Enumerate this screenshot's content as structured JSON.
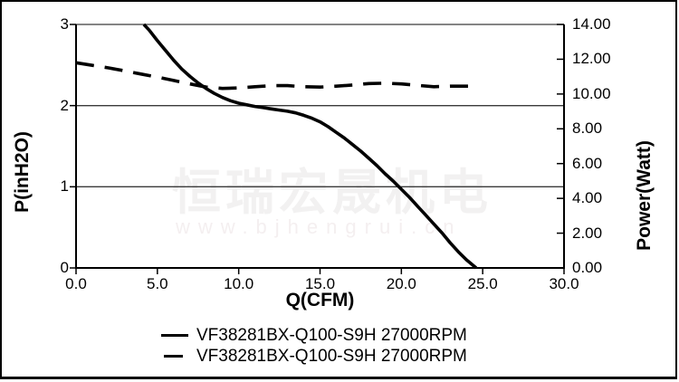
{
  "watermark": {
    "cjk_text": "恒瑞宏晟机电",
    "url_text": "www.bjhengrui.cn"
  },
  "colors": {
    "curve": "#000000",
    "grid": "#3a3a3a",
    "axis": "#000000",
    "watermark_cjk": "#f2f1f1",
    "watermark_url": "#f4eff0",
    "background": "#ffffff"
  },
  "legend": [
    {
      "label": "VF38281BX-Q100-S9H 27000RPM",
      "style": "solid"
    },
    {
      "label": "VF38281BX-Q100-S9H 27000RPM",
      "style": "dashed"
    }
  ],
  "chart_data": {
    "type": "line",
    "title": "",
    "xlabel": "Q(CFM)",
    "ylabel_left": "P(inH2O)",
    "ylabel_right": "Power(Watt)",
    "xlim": [
      0,
      30
    ],
    "ylim_left": [
      0,
      3
    ],
    "ylim_right": [
      0,
      14
    ],
    "x_tick_labels": [
      "0.0",
      "5.0",
      "10.0",
      "15.0",
      "20.0",
      "25.0",
      "30.0"
    ],
    "y_tick_labels_left": [
      "0",
      "1",
      "2",
      "3"
    ],
    "y_tick_labels_right": [
      "0.00",
      "2.00",
      "4.00",
      "6.00",
      "8.00",
      "10.00",
      "12.00",
      "14.00"
    ],
    "gridline_values_left": [
      1,
      2,
      3
    ],
    "grid": "horizontal-only",
    "legend_position": "bottom-center",
    "series": [
      {
        "name": "VF38281BX-Q100-S9H 27000RPM",
        "style": "solid",
        "axis": "left",
        "units": "inH2O",
        "points": [
          [
            4.17,
            3.0
          ],
          [
            4.5,
            2.93
          ],
          [
            5,
            2.8
          ],
          [
            5.5,
            2.68
          ],
          [
            6,
            2.56
          ],
          [
            6.5,
            2.45
          ],
          [
            7,
            2.36
          ],
          [
            7.5,
            2.28
          ],
          [
            8,
            2.21
          ],
          [
            8.5,
            2.15
          ],
          [
            9,
            2.1
          ],
          [
            9.5,
            2.06
          ],
          [
            10,
            2.03
          ],
          [
            10.5,
            2.01
          ],
          [
            11,
            1.99
          ],
          [
            11.5,
            1.975
          ],
          [
            12,
            1.96
          ],
          [
            12.5,
            1.945
          ],
          [
            13,
            1.93
          ],
          [
            13.5,
            1.91
          ],
          [
            14,
            1.88
          ],
          [
            14.5,
            1.845
          ],
          [
            15,
            1.8
          ],
          [
            15.5,
            1.74
          ],
          [
            16,
            1.67
          ],
          [
            16.5,
            1.6
          ],
          [
            17,
            1.52
          ],
          [
            17.5,
            1.44
          ],
          [
            18,
            1.35
          ],
          [
            18.5,
            1.26
          ],
          [
            19,
            1.16
          ],
          [
            19.5,
            1.07
          ],
          [
            20,
            0.97
          ],
          [
            20.5,
            0.87
          ],
          [
            21,
            0.76
          ],
          [
            21.5,
            0.65
          ],
          [
            22,
            0.54
          ],
          [
            22.5,
            0.43
          ],
          [
            23,
            0.31
          ],
          [
            23.5,
            0.2
          ],
          [
            24,
            0.1
          ],
          [
            24.6,
            0.0
          ]
        ]
      },
      {
        "name": "VF38281BX-Q100-S9H 27000RPM",
        "style": "dashed",
        "axis": "right",
        "units": "Watt",
        "points": [
          [
            0,
            11.8
          ],
          [
            1,
            11.65
          ],
          [
            2,
            11.5
          ],
          [
            3,
            11.33
          ],
          [
            4,
            11.15
          ],
          [
            5,
            10.97
          ],
          [
            6,
            10.78
          ],
          [
            7,
            10.58
          ],
          [
            8,
            10.4
          ],
          [
            9,
            10.32
          ],
          [
            10,
            10.35
          ],
          [
            11,
            10.42
          ],
          [
            12,
            10.48
          ],
          [
            13,
            10.48
          ],
          [
            14,
            10.42
          ],
          [
            15,
            10.4
          ],
          [
            16,
            10.45
          ],
          [
            17,
            10.52
          ],
          [
            18,
            10.6
          ],
          [
            19,
            10.62
          ],
          [
            20,
            10.58
          ],
          [
            21,
            10.5
          ],
          [
            22,
            10.42
          ],
          [
            23,
            10.45
          ],
          [
            24.2,
            10.45
          ]
        ]
      }
    ]
  }
}
